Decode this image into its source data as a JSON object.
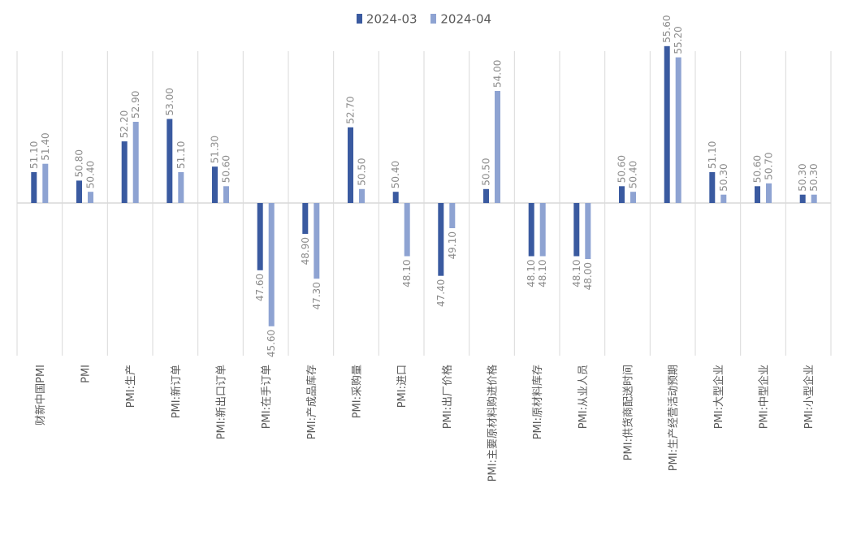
{
  "chart_data": {
    "type": "bar",
    "baseline": 50,
    "ylim": [
      45,
      56
    ],
    "grid": true,
    "legend_position": "top-center",
    "categories": [
      "财新中国PMI",
      "PMI",
      "PMI:生产",
      "PMI:新订单",
      "PMI:新出口订单",
      "PMI:在手订单",
      "PMI:产成品库存",
      "PMI:采购量",
      "PMI:进口",
      "PMI:出厂价格",
      "PMI:主要原材料购进价格",
      "PMI:原材料库存",
      "PMI:从业人员",
      "PMI:供货商配送时间",
      "PMI:生产经营活动预期",
      "PMI:大型企业",
      "PMI:中型企业",
      "PMI:小型企业"
    ],
    "series": [
      {
        "name": "2024-03",
        "color": "#3a5aa0",
        "values": [
          51.1,
          50.8,
          52.2,
          53.0,
          51.3,
          47.6,
          48.9,
          52.7,
          50.4,
          47.4,
          50.5,
          48.1,
          48.1,
          50.6,
          55.6,
          51.1,
          50.6,
          50.3
        ],
        "labels": [
          "51.10",
          "50.80",
          "52.20",
          "53.00",
          "51.30",
          "47.60",
          "48.90",
          "52.70",
          "50.40",
          "47.40",
          "50.50",
          "48.10",
          "48.10",
          "50.60",
          "55.60",
          "51.10",
          "50.60",
          "50.30"
        ]
      },
      {
        "name": "2024-04",
        "color": "#8ea3d2",
        "values": [
          51.4,
          50.4,
          52.9,
          51.1,
          50.6,
          45.6,
          47.3,
          50.5,
          48.1,
          49.1,
          54.0,
          48.1,
          48.0,
          50.4,
          55.2,
          50.3,
          50.7,
          50.3
        ],
        "labels": [
          "51.40",
          "50.40",
          "52.90",
          "51.10",
          "50.60",
          "45.60",
          "47.30",
          "50.50",
          "48.10",
          "49.10",
          "54.00",
          "48.10",
          "48.00",
          "50.40",
          "55.20",
          "50.30",
          "50.70",
          "50.30"
        ]
      }
    ],
    "colors": {
      "gridline": "#d9d9d9",
      "axis_text": "#595959",
      "label_text": "#8c8c8c"
    }
  }
}
